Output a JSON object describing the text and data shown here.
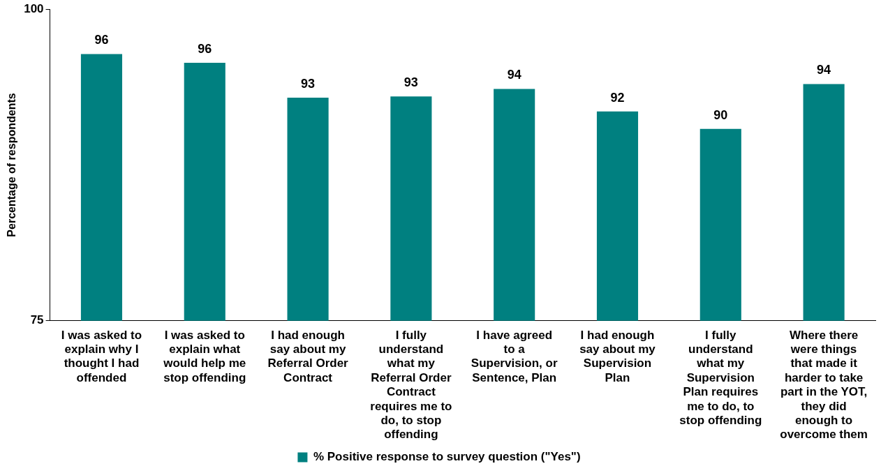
{
  "chart_data": {
    "type": "bar",
    "ylabel": "Percentage of respondents",
    "categories": [
      "I was asked to explain why I thought I had offended",
      "I was asked to explain what would help me stop offending",
      "I had enough say about my Referral Order Contract",
      "I fully understand what my Referral Order Contract requires me to do, to stop offending",
      "I have agreed to a Supervision, or Sentence, Plan",
      "I had enough say about my Supervision Plan",
      "I fully understand what my Supervision Plan requires me to do, to stop offending",
      "Where there were things that made it harder to take part in the YOT, they did enough to overcome them"
    ],
    "series": [
      {
        "name": "% Positive response to survey question (\"Yes\")",
        "color": "#008080",
        "values": [
          96.4,
          95.7,
          92.9,
          93.0,
          93.6,
          91.8,
          90.4,
          94.0
        ],
        "value_labels": [
          "96",
          "96",
          "93",
          "93",
          "94",
          "92",
          "90",
          "94"
        ]
      }
    ],
    "ylim": [
      75,
      100
    ],
    "yticks": [
      75,
      100
    ],
    "grid": false,
    "legend": "bottom"
  }
}
